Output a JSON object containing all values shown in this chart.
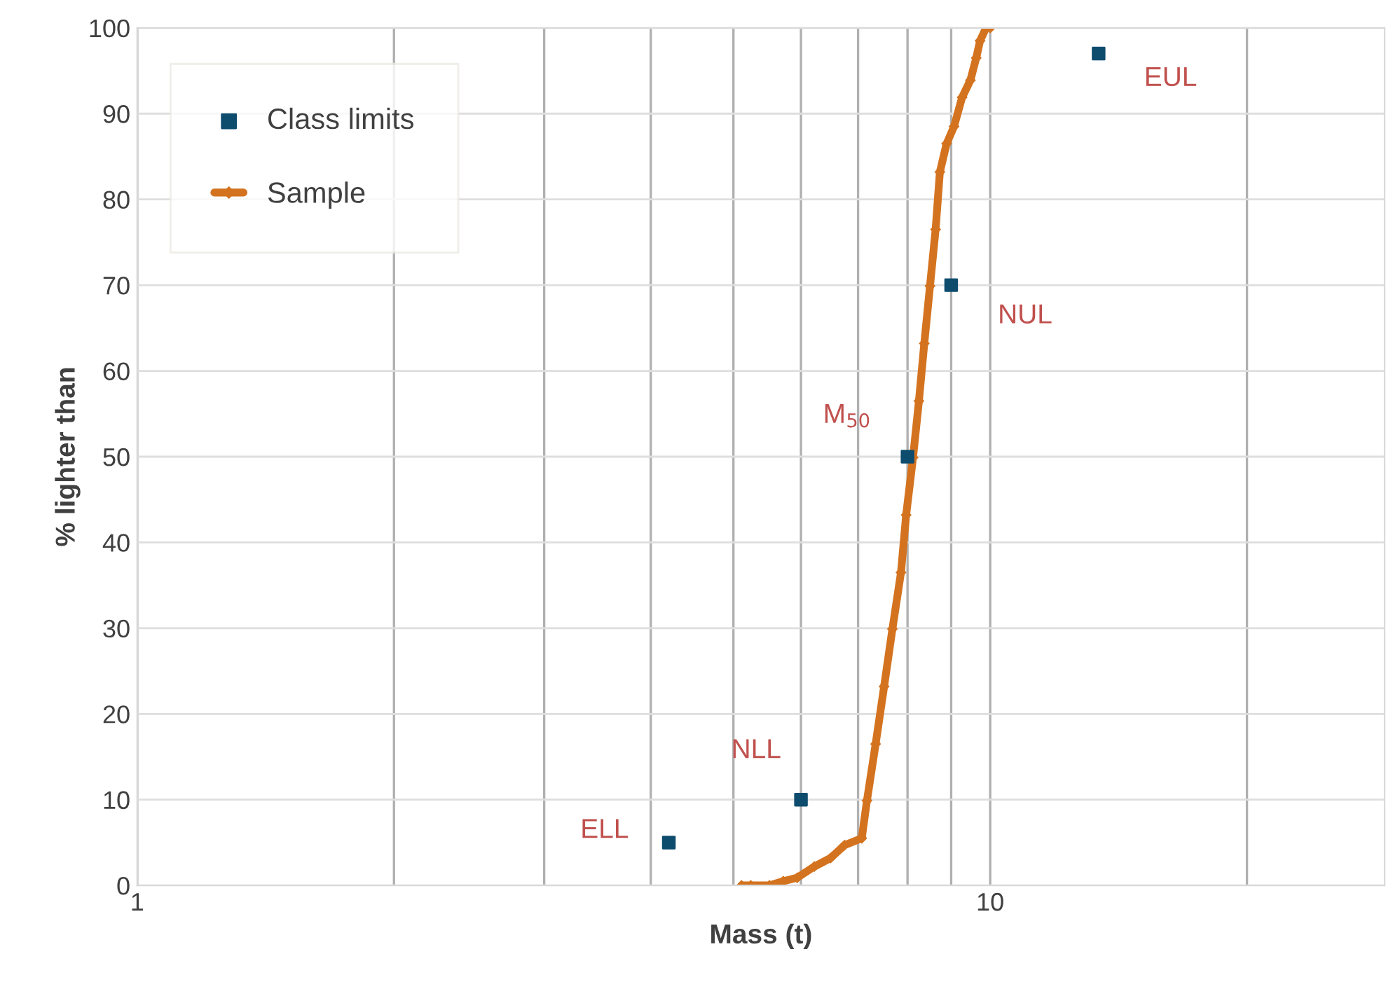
{
  "chart_data": {
    "type": "scatter",
    "xlabel": "Mass (t)",
    "ylabel": "% lighter than",
    "log": "x",
    "xlim": [
      1,
      29
    ],
    "xticks": [
      1,
      {
        "value": 2,
        "label": null
      },
      {
        "value": 3,
        "label": null
      },
      {
        "value": 4,
        "label": null
      },
      {
        "value": 5,
        "label": null
      },
      {
        "value": 6,
        "label": null
      },
      {
        "value": 7,
        "label": null
      },
      {
        "value": 8,
        "label": null
      },
      {
        "value": 9,
        "label": null
      },
      10,
      {
        "value": 20,
        "label": null
      }
    ],
    "ylim": [
      0,
      100
    ],
    "yticks": [
      0,
      10,
      20,
      30,
      40,
      50,
      60,
      70,
      80,
      90,
      100
    ],
    "grid": true,
    "legend": "top left",
    "series": [
      {
        "name": "Class limits",
        "marker": "square",
        "color": "#0e4c6e",
        "x": [
          4.2,
          6,
          8,
          9,
          13.4
        ],
        "values": [
          5,
          10,
          50,
          70,
          97
        ]
      },
      {
        "name": "Sample",
        "type": "line",
        "marker": "diamond",
        "color": "#d4731f",
        "x": [
          5.11,
          5.24,
          5.51,
          5.72,
          5.94,
          6.22,
          6.5,
          6.75,
          7.07,
          7.17,
          7.34,
          7.51,
          7.68,
          7.86,
          7.97,
          8.12,
          8.25,
          8.37,
          8.5,
          8.63,
          8.73,
          8.89,
          9.07,
          9.27,
          9.48,
          9.63,
          9.73,
          9.89,
          10
        ],
        "values": [
          0,
          0,
          0,
          0.5,
          0.9,
          2.2,
          3.2,
          4.7,
          5.5,
          9.9,
          16.5,
          23.2,
          29.9,
          36.5,
          43.2,
          49.9,
          56.5,
          63.2,
          69.9,
          76.5,
          83.2,
          86.5,
          88.5,
          91.9,
          93.9,
          96.5,
          98.5,
          100,
          100
        ]
      }
    ],
    "annotations": [
      {
        "text": "ELL",
        "x": 4.2,
        "y": 5
      },
      {
        "text": "NLL",
        "x": 6,
        "y": 10
      },
      {
        "text": "M$_{50}$",
        "x": 8,
        "y": 50
      },
      {
        "text": "NUL",
        "x": 9,
        "y": 70
      },
      {
        "text": "EUL",
        "x": 13.4,
        "y": 97
      }
    ]
  }
}
